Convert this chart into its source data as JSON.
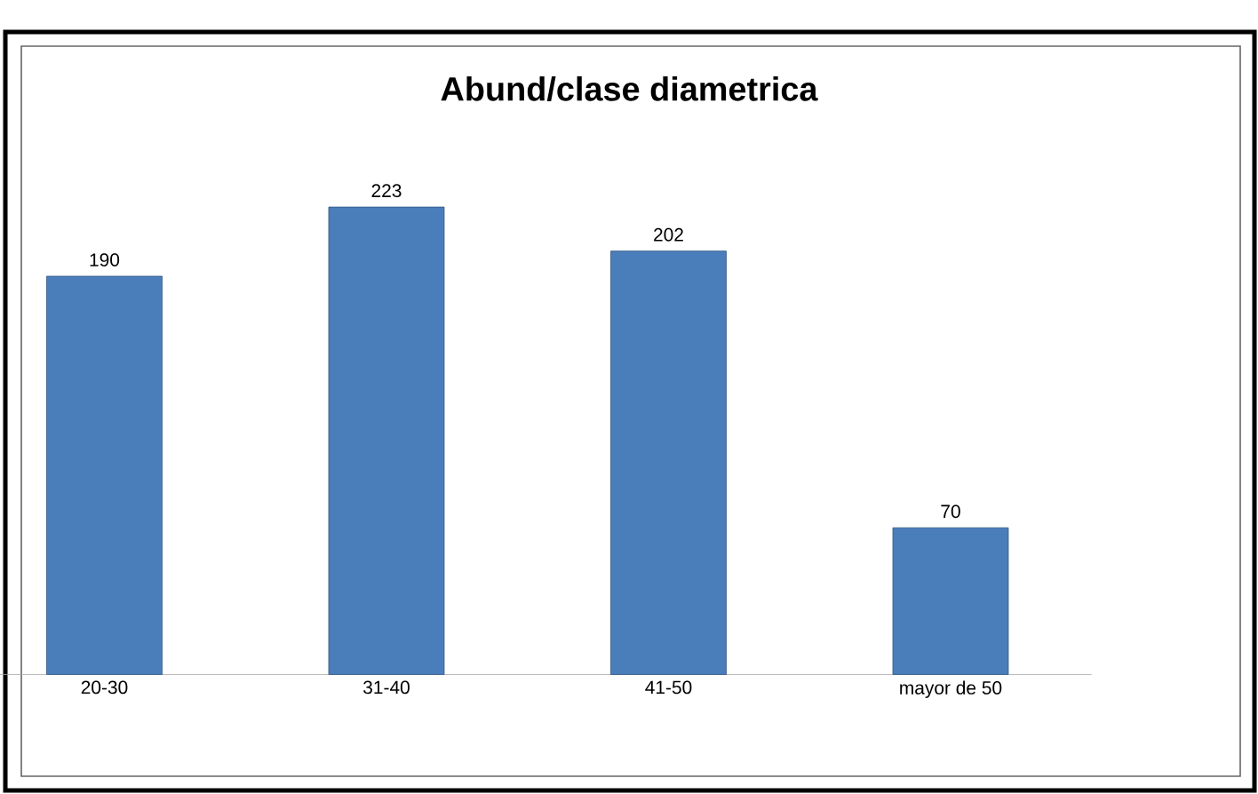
{
  "chart_data": {
    "type": "bar",
    "title": "Abund/clase diametrica",
    "categories": [
      "20-30",
      "31-40",
      "41-50",
      "mayor de 50"
    ],
    "values": [
      190,
      223,
      202,
      70
    ],
    "color": "#4a7ebb",
    "data_labels": true
  }
}
